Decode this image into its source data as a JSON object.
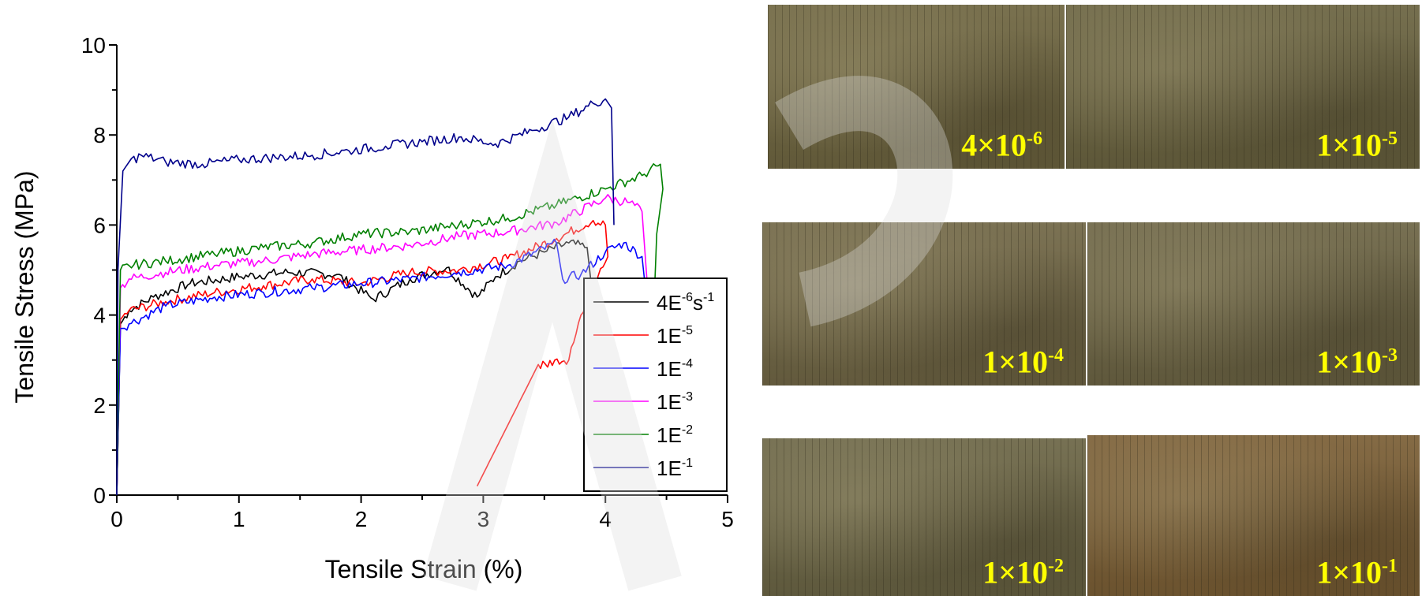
{
  "chart_data": {
    "type": "line",
    "xlabel": "Tensile Strain (%)",
    "ylabel": "Tensile Stress (MPa)",
    "xlim": [
      0,
      5
    ],
    "ylim": [
      0,
      10
    ],
    "x_ticks": [
      "0",
      "1",
      "2",
      "3",
      "4",
      "5"
    ],
    "y_ticks": [
      "0",
      "2",
      "4",
      "6",
      "8",
      "10"
    ],
    "grid": false,
    "legend_position": "bottom-right",
    "series": [
      {
        "legend_main": "4E",
        "legend_sup": "-6",
        "legend_unit": "s",
        "legend_unit_sup": "-1",
        "color": "#000000",
        "x": [
          0,
          0.03,
          0.1,
          0.3,
          0.6,
          1.0,
          1.4,
          1.8,
          2.1,
          2.4,
          2.7,
          2.95,
          3.1,
          3.3,
          3.5,
          3.7,
          3.85,
          3.9,
          3.95
        ],
        "y": [
          0,
          3.8,
          4.1,
          4.4,
          4.7,
          4.85,
          4.95,
          4.9,
          4.35,
          4.8,
          5.05,
          4.4,
          4.85,
          5.2,
          5.4,
          5.6,
          5.5,
          4.3,
          4.0
        ]
      },
      {
        "legend_main": "1E",
        "legend_sup": "-5",
        "legend_unit": "",
        "legend_unit_sup": "",
        "color": "#ff0000",
        "x": [
          0,
          0.03,
          0.1,
          0.4,
          0.8,
          1.2,
          1.6,
          2.0,
          2.4,
          2.8,
          3.2,
          3.6,
          3.9,
          4.0,
          4.02,
          3.8,
          3.7,
          3.45,
          2.95
        ],
        "y": [
          0,
          3.9,
          4.1,
          4.3,
          4.5,
          4.65,
          4.8,
          4.7,
          4.95,
          5.0,
          5.25,
          5.7,
          6.1,
          6.0,
          5.3,
          4.0,
          3.0,
          2.9,
          0.2
        ]
      },
      {
        "legend_main": "1E",
        "legend_sup": "-4",
        "legend_unit": "",
        "legend_unit_sup": "",
        "color": "#0000ff",
        "x": [
          0,
          0.03,
          0.1,
          0.4,
          0.8,
          1.2,
          1.6,
          2.0,
          2.4,
          2.8,
          3.2,
          3.6,
          3.65,
          3.8,
          4.0,
          4.15,
          4.3,
          4.35
        ],
        "y": [
          0,
          3.7,
          3.8,
          4.2,
          4.4,
          4.5,
          4.6,
          4.7,
          4.8,
          4.95,
          5.1,
          5.6,
          4.8,
          4.9,
          5.4,
          5.6,
          5.3,
          4.0
        ]
      },
      {
        "legend_main": "1E",
        "legend_sup": "-3",
        "legend_unit": "",
        "legend_unit_sup": "",
        "color": "#ff00ff",
        "x": [
          0,
          0.03,
          0.1,
          0.4,
          0.8,
          1.2,
          1.6,
          2.0,
          2.4,
          2.8,
          3.2,
          3.6,
          4.0,
          4.2,
          4.3,
          4.35
        ],
        "y": [
          0,
          4.6,
          4.8,
          4.95,
          5.1,
          5.2,
          5.35,
          5.45,
          5.55,
          5.75,
          5.85,
          6.05,
          6.6,
          6.5,
          6.3,
          4.4
        ]
      },
      {
        "legend_main": "1E",
        "legend_sup": "-2",
        "legend_unit": "",
        "legend_unit_sup": "",
        "color": "#008000",
        "x": [
          0,
          0.03,
          0.1,
          0.4,
          0.8,
          1.2,
          1.6,
          2.0,
          2.4,
          2.8,
          3.2,
          3.6,
          4.0,
          4.3,
          4.45,
          4.47,
          4.42,
          4.4
        ],
        "y": [
          0,
          5.0,
          5.1,
          5.2,
          5.35,
          5.5,
          5.6,
          5.8,
          5.85,
          6.0,
          6.15,
          6.45,
          6.8,
          7.1,
          7.35,
          6.8,
          5.8,
          4.4
        ]
      },
      {
        "legend_main": "1E",
        "legend_sup": "-1",
        "legend_unit": "",
        "legend_unit_sup": "",
        "color": "#00008b",
        "x": [
          0,
          0.01,
          0.05,
          0.1,
          0.2,
          0.4,
          0.7,
          1.0,
          1.3,
          1.6,
          1.9,
          2.2,
          2.5,
          2.8,
          3.1,
          3.4,
          3.7,
          3.9,
          4.0,
          4.05,
          4.07
        ],
        "y": [
          0,
          5.0,
          7.2,
          7.4,
          7.55,
          7.4,
          7.35,
          7.45,
          7.5,
          7.55,
          7.65,
          7.75,
          7.85,
          7.95,
          7.8,
          8.1,
          8.4,
          8.7,
          8.8,
          8.6,
          6.0
        ]
      }
    ]
  },
  "photos": [
    {
      "main": "4×10",
      "sup": "-6",
      "tone": "#6e6540"
    },
    {
      "main": "1×10",
      "sup": "-5",
      "tone": "#6a6340"
    },
    {
      "main": "1×10",
      "sup": "-4",
      "tone": "#706645"
    },
    {
      "main": "1×10",
      "sup": "-3",
      "tone": "#6c6444"
    },
    {
      "main": "1×10",
      "sup": "-2",
      "tone": "#6b6545"
    },
    {
      "main": "1×10",
      "sup": "-1",
      "tone": "#7a5e35"
    }
  ]
}
